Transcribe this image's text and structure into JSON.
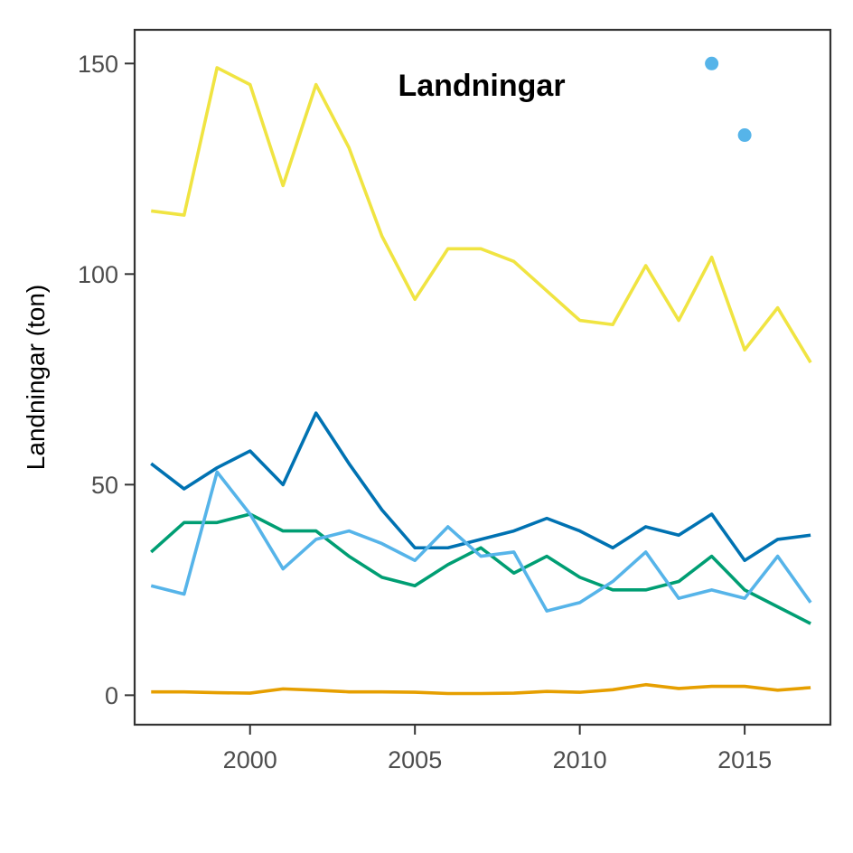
{
  "chart_data": {
    "type": "line",
    "title": "Landningar",
    "xlabel": "",
    "ylabel": "Landningar (ton)",
    "xlim": [
      1996.5,
      2017.6
    ],
    "ylim": [
      -7,
      158
    ],
    "x_ticks": [
      2000,
      2005,
      2010,
      2015
    ],
    "y_ticks": [
      0,
      50,
      100,
      150
    ],
    "grid": false,
    "x": [
      1997,
      1998,
      1999,
      2000,
      2001,
      2002,
      2003,
      2004,
      2005,
      2006,
      2007,
      2008,
      2009,
      2010,
      2011,
      2012,
      2013,
      2014,
      2015,
      2016,
      2017
    ],
    "series": [
      {
        "color": "#F0E442",
        "values": [
          115,
          114,
          149,
          145,
          121,
          145,
          130,
          109,
          94,
          106,
          106,
          103,
          96,
          89,
          88,
          102,
          89,
          104,
          82,
          92,
          79
        ]
      },
      {
        "color": "#0072B2",
        "values": [
          55,
          49,
          54,
          58,
          50,
          67,
          55,
          44,
          35,
          35,
          37,
          39,
          42,
          39,
          35,
          40,
          38,
          43,
          32,
          37,
          38
        ]
      },
      {
        "color": "#009E73",
        "values": [
          34,
          41,
          41,
          43,
          39,
          39,
          33,
          28,
          26,
          31,
          35,
          29,
          33,
          28,
          25,
          25,
          27,
          33,
          25,
          21,
          17
        ]
      },
      {
        "color": "#56B4E9",
        "values": [
          26,
          24,
          53,
          43,
          30,
          37,
          39,
          36,
          32,
          40,
          33,
          34,
          20,
          22,
          27,
          34,
          23,
          25,
          23,
          33,
          22
        ]
      },
      {
        "color": "#E69F00",
        "values": [
          0.8,
          0.8,
          0.6,
          0.5,
          1.5,
          1.2,
          0.8,
          0.8,
          0.7,
          0.4,
          0.4,
          0.5,
          0.9,
          0.7,
          1.3,
          2.5,
          1.6,
          2.1,
          2.1,
          1.2,
          1.8
        ]
      }
    ],
    "points": [
      {
        "color": "#56B4E9",
        "x": 2014,
        "y": 150
      },
      {
        "color": "#56B4E9",
        "x": 2015,
        "y": 133
      }
    ]
  }
}
